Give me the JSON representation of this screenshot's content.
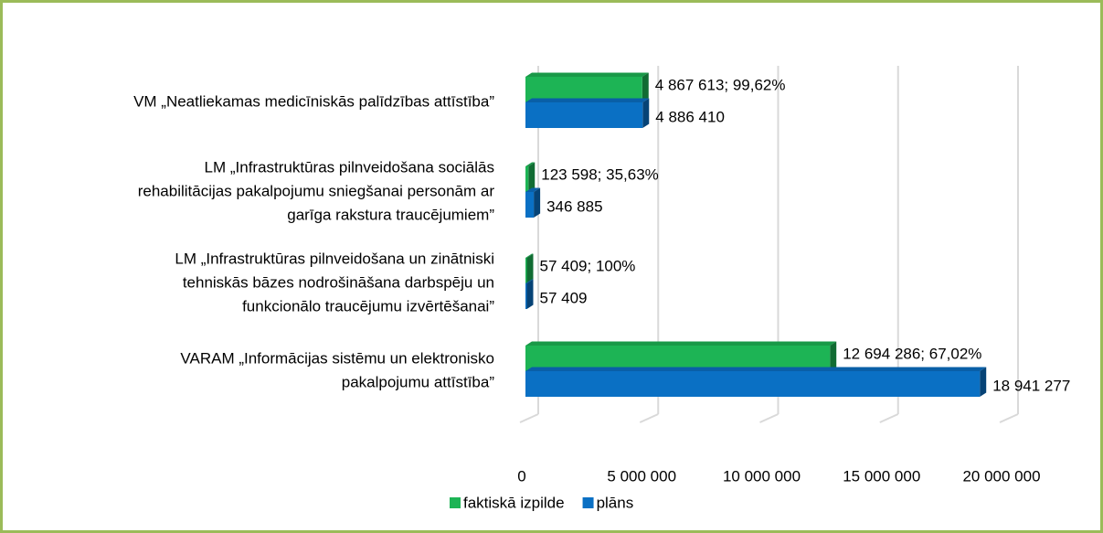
{
  "chart_data": {
    "type": "bar3d_horizontal",
    "categories": [
      [
        "VM „Neatliekamas medicīniskās palīdzības attīstība”"
      ],
      [
        "LM „Infrastruktūras pilnveidošana sociālās",
        "rehabilitācijas pakalpojumu sniegšanai personām ar",
        "garīga rakstura traucējumiem”"
      ],
      [
        "LM „Infrastruktūras pilnveidošana un zinātniski",
        "tehniskās bāzes nodrošināšana darbspēju un",
        "funkcionālo traucējumu izvērtēšanai”"
      ],
      [
        "VARAM „Informācijas sistēmu un elektronisko",
        "pakalpojumu attīstība”"
      ]
    ],
    "series": [
      {
        "name": "faktiskā izpilde",
        "color": "#1db455",
        "values": [
          4867613,
          123598,
          57409,
          12694286
        ],
        "value_labels": [
          "4 867 613; 99,62%",
          "123 598; 35,63%",
          "57 409; 100%",
          "12 694 286; 67,02%"
        ]
      },
      {
        "name": "plāns",
        "color": "#0a70c4",
        "values": [
          4886410,
          346885,
          57409,
          18941277
        ],
        "value_labels": [
          "4 886 410",
          "346 885",
          "57 409",
          "18 941 277"
        ]
      }
    ],
    "xlim": [
      0,
      20000000
    ],
    "xticks": [
      0,
      {
        "value": 5000000,
        "label": "5 000 000"
      },
      {
        "value": 10000000,
        "label": "10 000 000"
      },
      {
        "value": 15000000,
        "label": "15 000 000"
      },
      {
        "value": 20000000,
        "label": "20 000 000"
      }
    ],
    "grid": true,
    "legend": "bottom"
  }
}
